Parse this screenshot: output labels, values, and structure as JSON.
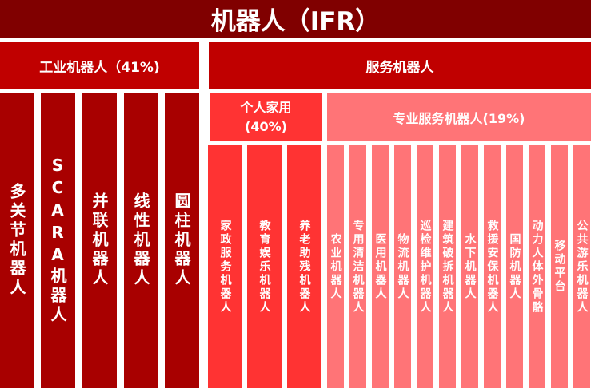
{
  "title": "机器人（IFR）",
  "industrial": {
    "label": "工业机器人（41%)",
    "items": [
      "多关节机器人",
      "SCARA机器人",
      "并联机器人",
      "线性机器人",
      "圆柱机器人"
    ]
  },
  "service": {
    "label": "服务机器人"
  },
  "personal": {
    "label_line1": "个人家用",
    "label_line2": "(40%)",
    "items": [
      "家政服务机器人",
      "教育娱乐机器人",
      "养老助残机器人"
    ]
  },
  "professional": {
    "label": "专业服务机器人(19%)",
    "items": [
      "农业机器人",
      "专用清洁机器人",
      "医用机器人",
      "物流机器人",
      "巡检维护机器人",
      "建筑破拆机器人",
      "水下机器人",
      "救援安保机器人",
      "国防机器人",
      "动力人体外骨骼",
      "移动平台",
      "公共游乐机器人"
    ]
  },
  "colors": {
    "title": "#800000",
    "level1": "#C00000",
    "industrial_leaf": "#A80000",
    "personal": "#FF3333",
    "professional": "#FF7477"
  }
}
